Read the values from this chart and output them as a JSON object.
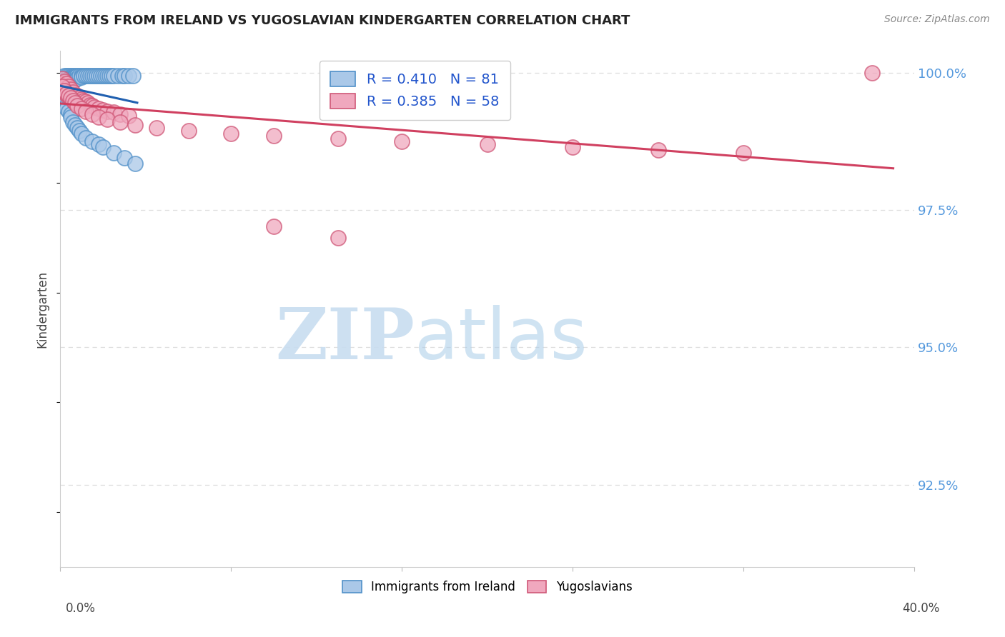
{
  "title": "IMMIGRANTS FROM IRELAND VS YUGOSLAVIAN KINDERGARTEN CORRELATION CHART",
  "source": "Source: ZipAtlas.com",
  "ylabel": "Kindergarten",
  "ytick_labels": [
    "92.5%",
    "95.0%",
    "97.5%",
    "100.0%"
  ],
  "ytick_values": [
    0.925,
    0.95,
    0.975,
    1.0
  ],
  "xlim": [
    0.0,
    0.4
  ],
  "ylim": [
    0.91,
    1.004
  ],
  "legend_label1": "R = 0.410   N = 81",
  "legend_label2": "R = 0.385   N = 58",
  "legend1_bottom": "Immigrants from Ireland",
  "legend2_bottom": "Yugoslavians",
  "color_blue_fill": "#aac8e8",
  "color_blue_edge": "#5090c8",
  "color_pink_fill": "#f0a8be",
  "color_pink_edge": "#d05878",
  "color_line_blue": "#2060b0",
  "color_line_pink": "#d04060",
  "grid_color": "#dddddd",
  "right_tick_color": "#5599dd",
  "ireland_x": [
    0.001,
    0.001,
    0.001,
    0.002,
    0.002,
    0.002,
    0.002,
    0.002,
    0.002,
    0.002,
    0.002,
    0.003,
    0.003,
    0.003,
    0.003,
    0.003,
    0.003,
    0.003,
    0.004,
    0.004,
    0.004,
    0.004,
    0.004,
    0.005,
    0.005,
    0.005,
    0.005,
    0.005,
    0.006,
    0.006,
    0.006,
    0.006,
    0.007,
    0.007,
    0.007,
    0.008,
    0.008,
    0.009,
    0.01,
    0.01,
    0.011,
    0.012,
    0.013,
    0.014,
    0.015,
    0.016,
    0.017,
    0.018,
    0.019,
    0.02,
    0.021,
    0.022,
    0.023,
    0.024,
    0.025,
    0.027,
    0.029,
    0.03,
    0.032,
    0.034,
    0.001,
    0.001,
    0.002,
    0.002,
    0.003,
    0.003,
    0.004,
    0.005,
    0.005,
    0.006,
    0.007,
    0.008,
    0.009,
    0.01,
    0.012,
    0.015,
    0.018,
    0.02,
    0.025,
    0.03,
    0.035
  ],
  "ireland_y": [
    0.999,
    0.9985,
    0.998,
    0.9995,
    0.999,
    0.9988,
    0.9985,
    0.9982,
    0.998,
    0.9978,
    0.9975,
    0.9995,
    0.999,
    0.9988,
    0.9985,
    0.9982,
    0.998,
    0.9978,
    0.9995,
    0.999,
    0.9988,
    0.9985,
    0.998,
    0.9995,
    0.9992,
    0.999,
    0.9985,
    0.9982,
    0.9995,
    0.9992,
    0.999,
    0.9985,
    0.9995,
    0.9992,
    0.9988,
    0.9995,
    0.999,
    0.9995,
    0.9995,
    0.9992,
    0.9995,
    0.9995,
    0.9995,
    0.9995,
    0.9995,
    0.9995,
    0.9995,
    0.9995,
    0.9995,
    0.9995,
    0.9995,
    0.9995,
    0.9995,
    0.9995,
    0.9995,
    0.9995,
    0.9995,
    0.9995,
    0.9995,
    0.9995,
    0.996,
    0.9955,
    0.995,
    0.9945,
    0.994,
    0.9935,
    0.993,
    0.9925,
    0.992,
    0.991,
    0.9905,
    0.99,
    0.9895,
    0.989,
    0.9882,
    0.9875,
    0.987,
    0.9865,
    0.9855,
    0.9845,
    0.9835
  ],
  "yugo_x": [
    0.001,
    0.001,
    0.002,
    0.002,
    0.002,
    0.003,
    0.003,
    0.003,
    0.004,
    0.004,
    0.005,
    0.005,
    0.006,
    0.006,
    0.007,
    0.008,
    0.009,
    0.01,
    0.011,
    0.012,
    0.013,
    0.014,
    0.015,
    0.016,
    0.018,
    0.02,
    0.022,
    0.025,
    0.028,
    0.032,
    0.001,
    0.002,
    0.003,
    0.004,
    0.005,
    0.006,
    0.007,
    0.008,
    0.01,
    0.012,
    0.015,
    0.018,
    0.022,
    0.028,
    0.035,
    0.045,
    0.06,
    0.08,
    0.1,
    0.13,
    0.16,
    0.2,
    0.24,
    0.28,
    0.32,
    0.38,
    0.1,
    0.13
  ],
  "yugo_y": [
    0.999,
    0.998,
    0.9985,
    0.9975,
    0.997,
    0.998,
    0.997,
    0.996,
    0.9975,
    0.9965,
    0.997,
    0.996,
    0.9965,
    0.9955,
    0.996,
    0.9958,
    0.9955,
    0.9952,
    0.995,
    0.9948,
    0.9945,
    0.9942,
    0.994,
    0.9938,
    0.9935,
    0.9932,
    0.993,
    0.9928,
    0.9925,
    0.9922,
    0.9975,
    0.9968,
    0.9962,
    0.9958,
    0.9955,
    0.995,
    0.9945,
    0.994,
    0.9935,
    0.993,
    0.9925,
    0.992,
    0.9915,
    0.991,
    0.9905,
    0.99,
    0.9895,
    0.989,
    0.9885,
    0.988,
    0.9875,
    0.987,
    0.9865,
    0.986,
    0.9855,
    1.0,
    0.972,
    0.97
  ]
}
